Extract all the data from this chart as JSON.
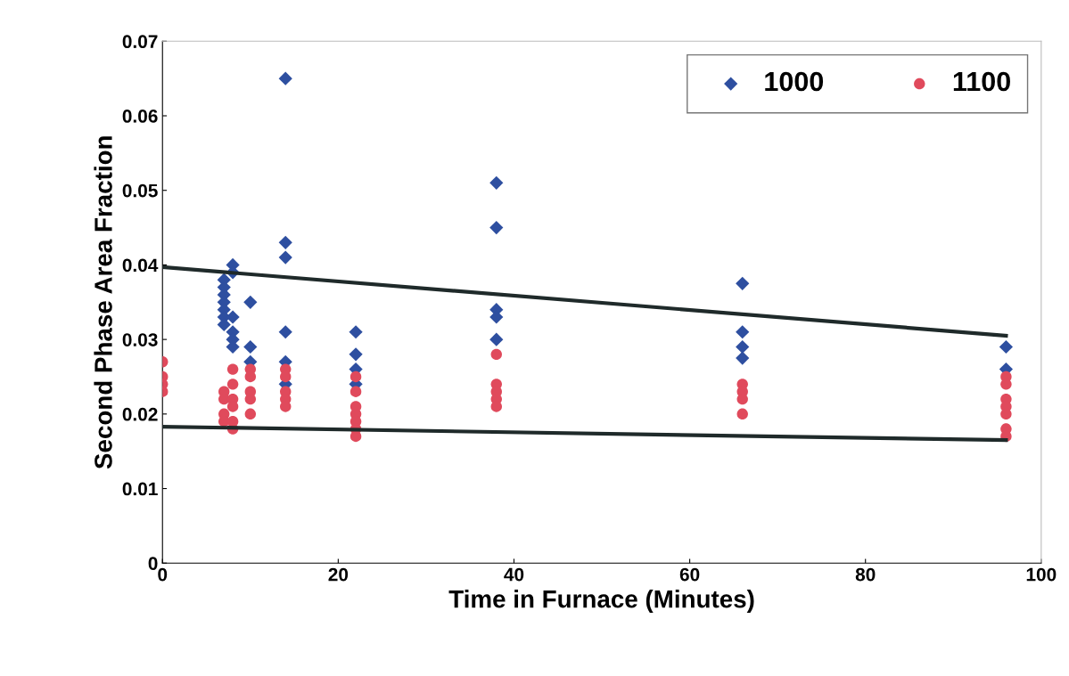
{
  "chart_data": {
    "type": "scatter",
    "xlabel": "Time in Furnace (Minutes)",
    "ylabel": "Second Phase Area Fraction",
    "xlim": [
      0,
      100
    ],
    "xticks": [
      0,
      20,
      40,
      60,
      80,
      100
    ],
    "ylim": [
      0,
      0.07
    ],
    "yticks": [
      0,
      0.01,
      0.02,
      0.03,
      0.04,
      0.05,
      0.06,
      0.07
    ],
    "grid": false,
    "legend": "top right",
    "series": [
      {
        "name": "1000",
        "color": "#2e4fa0",
        "marker": "diamond",
        "x": [
          7,
          7,
          7,
          7,
          7,
          7,
          7,
          8,
          8,
          8,
          8,
          8,
          8,
          10,
          10,
          10,
          14,
          14,
          14,
          14,
          14,
          14,
          22,
          22,
          22,
          22,
          38,
          38,
          38,
          38,
          38,
          66,
          66,
          66,
          66,
          96,
          96
        ],
        "values": [
          0.038,
          0.037,
          0.036,
          0.035,
          0.034,
          0.033,
          0.032,
          0.04,
          0.039,
          0.033,
          0.031,
          0.03,
          0.029,
          0.035,
          0.029,
          0.027,
          0.065,
          0.043,
          0.041,
          0.031,
          0.027,
          0.024,
          0.031,
          0.028,
          0.026,
          0.024,
          0.051,
          0.045,
          0.034,
          0.033,
          0.03,
          0.0375,
          0.031,
          0.029,
          0.0275,
          0.029,
          0.026
        ]
      },
      {
        "name": "1100",
        "color": "#e04a5c",
        "marker": "circle",
        "x": [
          0,
          0,
          0,
          0,
          7,
          7,
          7,
          7,
          8,
          8,
          8,
          8,
          8,
          8,
          10,
          10,
          10,
          10,
          10,
          14,
          14,
          14,
          14,
          14,
          22,
          22,
          22,
          22,
          22,
          22,
          22,
          38,
          38,
          38,
          38,
          38,
          66,
          66,
          66,
          66,
          96,
          96,
          96,
          96,
          96,
          96,
          96
        ],
        "values": [
          0.027,
          0.025,
          0.024,
          0.023,
          0.023,
          0.022,
          0.02,
          0.019,
          0.026,
          0.024,
          0.022,
          0.021,
          0.019,
          0.018,
          0.026,
          0.025,
          0.023,
          0.022,
          0.02,
          0.026,
          0.025,
          0.023,
          0.022,
          0.021,
          0.025,
          0.023,
          0.021,
          0.02,
          0.019,
          0.018,
          0.017,
          0.028,
          0.024,
          0.023,
          0.022,
          0.021,
          0.024,
          0.023,
          0.022,
          0.02,
          0.025,
          0.024,
          0.022,
          0.021,
          0.02,
          0.018,
          0.017
        ]
      },
      {
        "type": "line",
        "color": "#1f2a2a",
        "x": [
          0,
          96
        ],
        "values": [
          0.0397,
          0.0305
        ]
      },
      {
        "type": "line",
        "color": "#1f2a2a",
        "x": [
          0,
          96
        ],
        "values": [
          0.0183,
          0.0165
        ]
      }
    ]
  }
}
